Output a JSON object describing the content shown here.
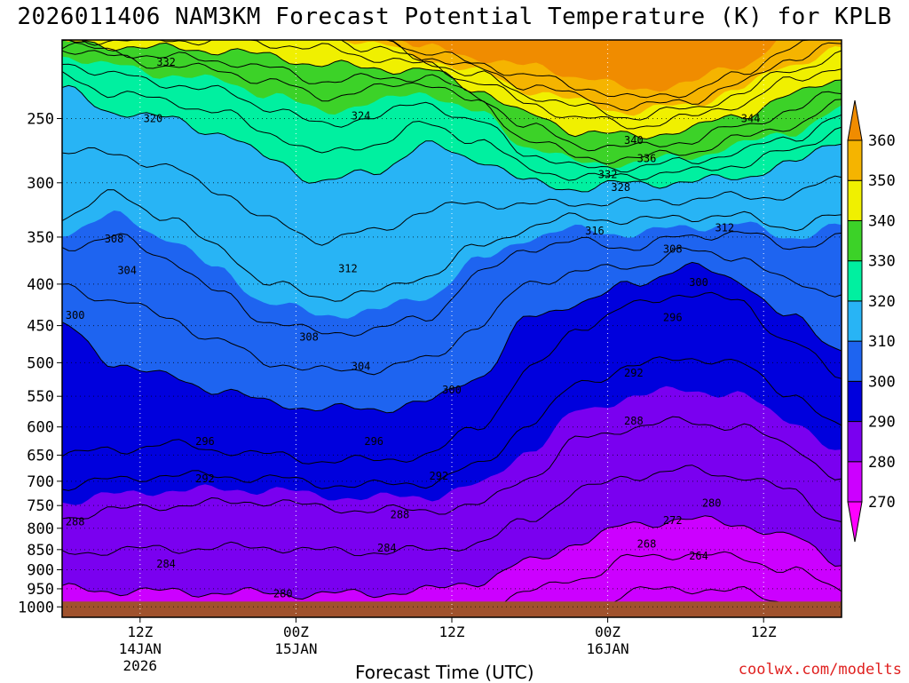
{
  "title": "2026011406 NAM3KM Forecast Potential Temperature (K) for KPLB",
  "credit": "coolwx.com/modelts",
  "chart_data": {
    "type": "heatmap",
    "title": "2026011406 NAM3KM Forecast Potential Temperature (K) for KPLB",
    "xlabel": "Forecast Time (UTC)",
    "ylabel": "",
    "y_scale": "log",
    "y_inverted": true,
    "ylim": [
      1030,
      200
    ],
    "y_ticks": [
      250,
      300,
      350,
      400,
      450,
      500,
      550,
      600,
      650,
      700,
      750,
      800,
      850,
      900,
      950,
      1000
    ],
    "x_start_hour": 6,
    "x_end_hour": 66,
    "x_ticks": [
      {
        "hour": 12,
        "label": "12Z",
        "date": "14JAN",
        "year": "2026"
      },
      {
        "hour": 24,
        "label": "00Z",
        "date": "15JAN",
        "year": ""
      },
      {
        "hour": 36,
        "label": "12Z",
        "date": "",
        "year": ""
      },
      {
        "hour": 48,
        "label": "00Z",
        "date": "16JAN",
        "year": ""
      },
      {
        "hour": 60,
        "label": "12Z",
        "date": "",
        "year": ""
      }
    ],
    "grid": true,
    "colorbar": {
      "levels": [
        270,
        280,
        290,
        300,
        310,
        320,
        330,
        340,
        350,
        360
      ],
      "labels": [
        "270",
        "280",
        "290",
        "300",
        "310",
        "320",
        "330",
        "340",
        "350",
        "360"
      ],
      "colors": [
        "#ff00ff",
        "#cc00ff",
        "#7a00f0",
        "#0000dd",
        "#1e64f0",
        "#28b4f5",
        "#00f0a0",
        "#3cd228",
        "#f0f000",
        "#f5b400",
        "#f08c00"
      ]
    },
    "isentrope_levels": [
      264,
      268,
      272,
      276,
      280,
      284,
      288,
      292,
      296,
      300,
      304,
      308,
      312,
      316,
      320,
      324,
      328,
      332,
      336,
      340,
      344,
      348,
      352,
      356
    ],
    "surface_pressure": 985,
    "pressure_ref_time": [
      6,
      10,
      14,
      18,
      22,
      26,
      30,
      34,
      38,
      42,
      46,
      50,
      54,
      58,
      62,
      66
    ],
    "pressure_ref_levels": [
      {
        "theta": 280,
        "p": [
          950,
          955,
          958,
          960,
          962,
          965,
          962,
          955,
          930,
          880,
          830,
          790,
          780,
          790,
          820,
          880
        ]
      },
      {
        "theta": 288,
        "p": [
          775,
          760,
          750,
          745,
          740,
          755,
          760,
          760,
          750,
          690,
          620,
          600,
          590,
          600,
          630,
          700
        ]
      },
      {
        "theta": 296,
        "p": [
          650,
          640,
          630,
          640,
          650,
          660,
          660,
          650,
          600,
          510,
          450,
          425,
          410,
          420,
          470,
          520
        ]
      },
      {
        "theta": 300,
        "p": [
          450,
          500,
          520,
          540,
          560,
          570,
          570,
          560,
          520,
          440,
          420,
          400,
          380,
          395,
          440,
          480
        ]
      },
      {
        "theta": 308,
        "p": [
          360,
          350,
          370,
          410,
          445,
          460,
          455,
          440,
          390,
          360,
          355,
          360,
          350,
          345,
          360,
          350
        ]
      },
      {
        "theta": 312,
        "p": [
          330,
          310,
          330,
          360,
          400,
          415,
          410,
          390,
          360,
          340,
          330,
          335,
          330,
          330,
          340,
          330
        ]
      },
      {
        "theta": 320,
        "p": [
          230,
          245,
          250,
          260,
          280,
          300,
          290,
          270,
          280,
          300,
          305,
          300,
          300,
          295,
          285,
          265
        ]
      },
      {
        "theta": 332,
        "p": [
          205,
          210,
          215,
          218,
          225,
          235,
          230,
          225,
          240,
          265,
          280,
          280,
          275,
          265,
          255,
          240
        ]
      },
      {
        "theta": 344,
        "p": [
          200,
          200,
          200,
          200,
          202,
          205,
          210,
          215,
          225,
          240,
          250,
          255,
          250,
          240,
          225,
          215
        ]
      }
    ],
    "contour_labels": [
      {
        "text": "332",
        "hour": 14,
        "p": 213
      },
      {
        "text": "320",
        "hour": 13,
        "p": 250
      },
      {
        "text": "324",
        "hour": 29,
        "p": 248
      },
      {
        "text": "340",
        "hour": 50,
        "p": 266
      },
      {
        "text": "344",
        "hour": 59,
        "p": 250
      },
      {
        "text": "336",
        "hour": 51,
        "p": 280
      },
      {
        "text": "332",
        "hour": 48,
        "p": 293
      },
      {
        "text": "328",
        "hour": 49,
        "p": 304
      },
      {
        "text": "316",
        "hour": 47,
        "p": 344
      },
      {
        "text": "312",
        "hour": 57,
        "p": 341
      },
      {
        "text": "308",
        "hour": 53,
        "p": 362
      },
      {
        "text": "308",
        "hour": 10,
        "p": 352
      },
      {
        "text": "304",
        "hour": 11,
        "p": 385
      },
      {
        "text": "312",
        "hour": 28,
        "p": 383
      },
      {
        "text": "300",
        "hour": 7,
        "p": 437
      },
      {
        "text": "300",
        "hour": 55,
        "p": 398
      },
      {
        "text": "308",
        "hour": 25,
        "p": 465
      },
      {
        "text": "296",
        "hour": 53,
        "p": 440
      },
      {
        "text": "304",
        "hour": 29,
        "p": 505
      },
      {
        "text": "300",
        "hour": 36,
        "p": 540
      },
      {
        "text": "292",
        "hour": 50,
        "p": 515
      },
      {
        "text": "288",
        "hour": 50,
        "p": 590
      },
      {
        "text": "296",
        "hour": 17,
        "p": 625
      },
      {
        "text": "296",
        "hour": 30,
        "p": 625
      },
      {
        "text": "292",
        "hour": 17,
        "p": 695
      },
      {
        "text": "292",
        "hour": 35,
        "p": 690
      },
      {
        "text": "280",
        "hour": 56,
        "p": 745
      },
      {
        "text": "272",
        "hour": 53,
        "p": 782
      },
      {
        "text": "288",
        "hour": 7,
        "p": 785
      },
      {
        "text": "288",
        "hour": 32,
        "p": 770
      },
      {
        "text": "268",
        "hour": 51,
        "p": 837
      },
      {
        "text": "284",
        "hour": 31,
        "p": 846
      },
      {
        "text": "264",
        "hour": 55,
        "p": 865
      },
      {
        "text": "284",
        "hour": 14,
        "p": 885
      },
      {
        "text": "280",
        "hour": 23,
        "p": 964
      }
    ]
  }
}
